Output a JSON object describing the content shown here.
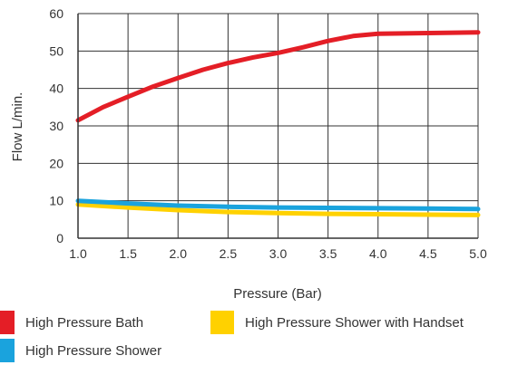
{
  "chart_data": {
    "type": "line",
    "xlabel": "Pressure (Bar)",
    "ylabel": "Flow L/min.",
    "xlim": [
      1.0,
      5.0
    ],
    "ylim": [
      0,
      60
    ],
    "x_ticks": [
      "1.0",
      "1.5",
      "2.0",
      "2.5",
      "3.0",
      "3.5",
      "4.0",
      "4.5",
      "5.0"
    ],
    "y_ticks": [
      "0",
      "10",
      "20",
      "30",
      "40",
      "50",
      "60"
    ],
    "grid": true,
    "legend_position": "bottom",
    "series": [
      {
        "name": "High Pressure Bath",
        "color": "#e41e26",
        "x": [
          1.0,
          1.25,
          1.5,
          1.75,
          2.0,
          2.25,
          2.5,
          2.75,
          3.0,
          3.25,
          3.5,
          3.75,
          4.0,
          4.5,
          5.0
        ],
        "y": [
          31.5,
          35.0,
          37.8,
          40.5,
          42.8,
          45.0,
          46.8,
          48.3,
          49.5,
          51.0,
          52.7,
          54.0,
          54.6,
          54.8,
          55.0
        ]
      },
      {
        "name": "High Pressure Shower",
        "color": "#1aa3dd",
        "x": [
          1.0,
          1.5,
          2.0,
          2.5,
          3.0,
          3.5,
          4.0,
          4.5,
          5.0
        ],
        "y": [
          10.0,
          9.3,
          8.7,
          8.4,
          8.2,
          8.1,
          8.0,
          7.9,
          7.8
        ]
      },
      {
        "name": "High Pressure Shower with Handset",
        "color": "#ffd100",
        "x": [
          1.0,
          1.5,
          2.0,
          2.5,
          3.0,
          3.5,
          4.0,
          4.5,
          5.0
        ],
        "y": [
          9.0,
          8.2,
          7.5,
          7.0,
          6.7,
          6.5,
          6.4,
          6.3,
          6.2
        ]
      }
    ]
  }
}
